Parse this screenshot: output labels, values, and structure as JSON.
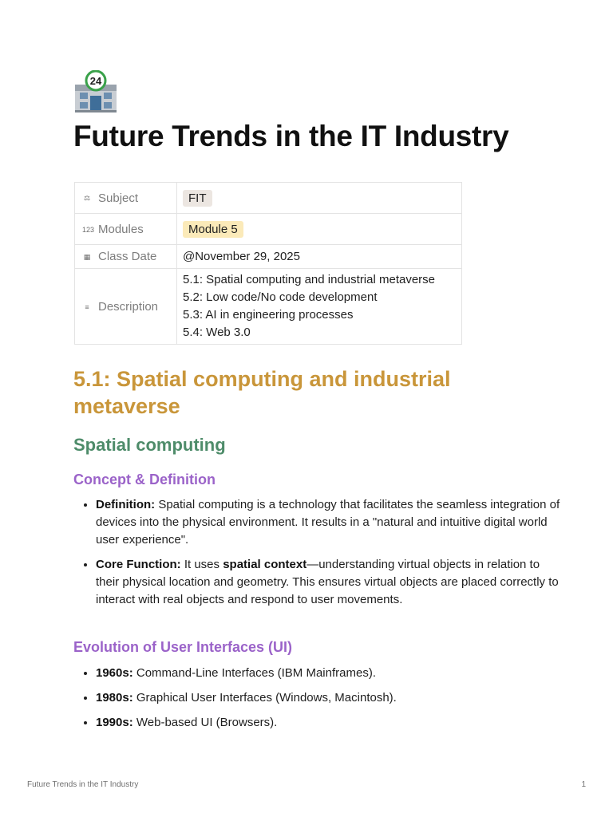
{
  "page_title": "Future Trends in the IT Industry",
  "page_icon": "convenience-store-24-emoji",
  "properties": {
    "subject": {
      "label": "Subject",
      "value": "FIT",
      "icon": "scales-icon"
    },
    "modules": {
      "label": "Modules",
      "value": "Module 5",
      "icon": "123-icon"
    },
    "class_date": {
      "label": "Class Date",
      "value": "@November 29, 2025",
      "icon": "calendar-icon"
    },
    "description": {
      "label": "Description",
      "icon": "text-lines-icon",
      "lines": [
        "5.1: Spatial computing and industrial metaverse",
        "5.2: Low code/No code development",
        "5.3: AI in engineering processes",
        "5.4: Web 3.0"
      ]
    }
  },
  "section_heading": "5.1: Spatial computing and industrial metaverse",
  "sub_heading": "Spatial computing",
  "concept": {
    "heading": "Concept & Definition",
    "items": [
      {
        "b1": "Definition:",
        "t1": " Spatial computing is a technology that facilitates the seamless integration of devices into the physical environment. It results in a \"natural and intuitive digital world user experience\"."
      },
      {
        "b1": "Core Function:",
        "t1": " It uses ",
        "b2": "spatial context",
        "t2": "—understanding virtual objects in relation to their physical location and geometry. This ensures virtual objects are placed correctly to interact with real objects and respond to user movements."
      }
    ]
  },
  "evolution": {
    "heading": "Evolution of User Interfaces (UI)",
    "items": [
      {
        "b": "1960s:",
        "t": " Command-Line Interfaces (IBM Mainframes)."
      },
      {
        "b": "1980s:",
        "t": " Graphical User Interfaces (Windows, Macintosh)."
      },
      {
        "b": "1990s:",
        "t": " Web-based UI (Browsers)."
      }
    ]
  },
  "footer": {
    "title": "Future Trends in the IT Industry",
    "page": "1"
  },
  "colors": {
    "section_heading": "#c9963a",
    "sub_heading": "#4e8c6a",
    "subsection_heading": "#9b63c9",
    "tag_fit": "#ece6e1",
    "tag_module": "#fbeab9"
  }
}
